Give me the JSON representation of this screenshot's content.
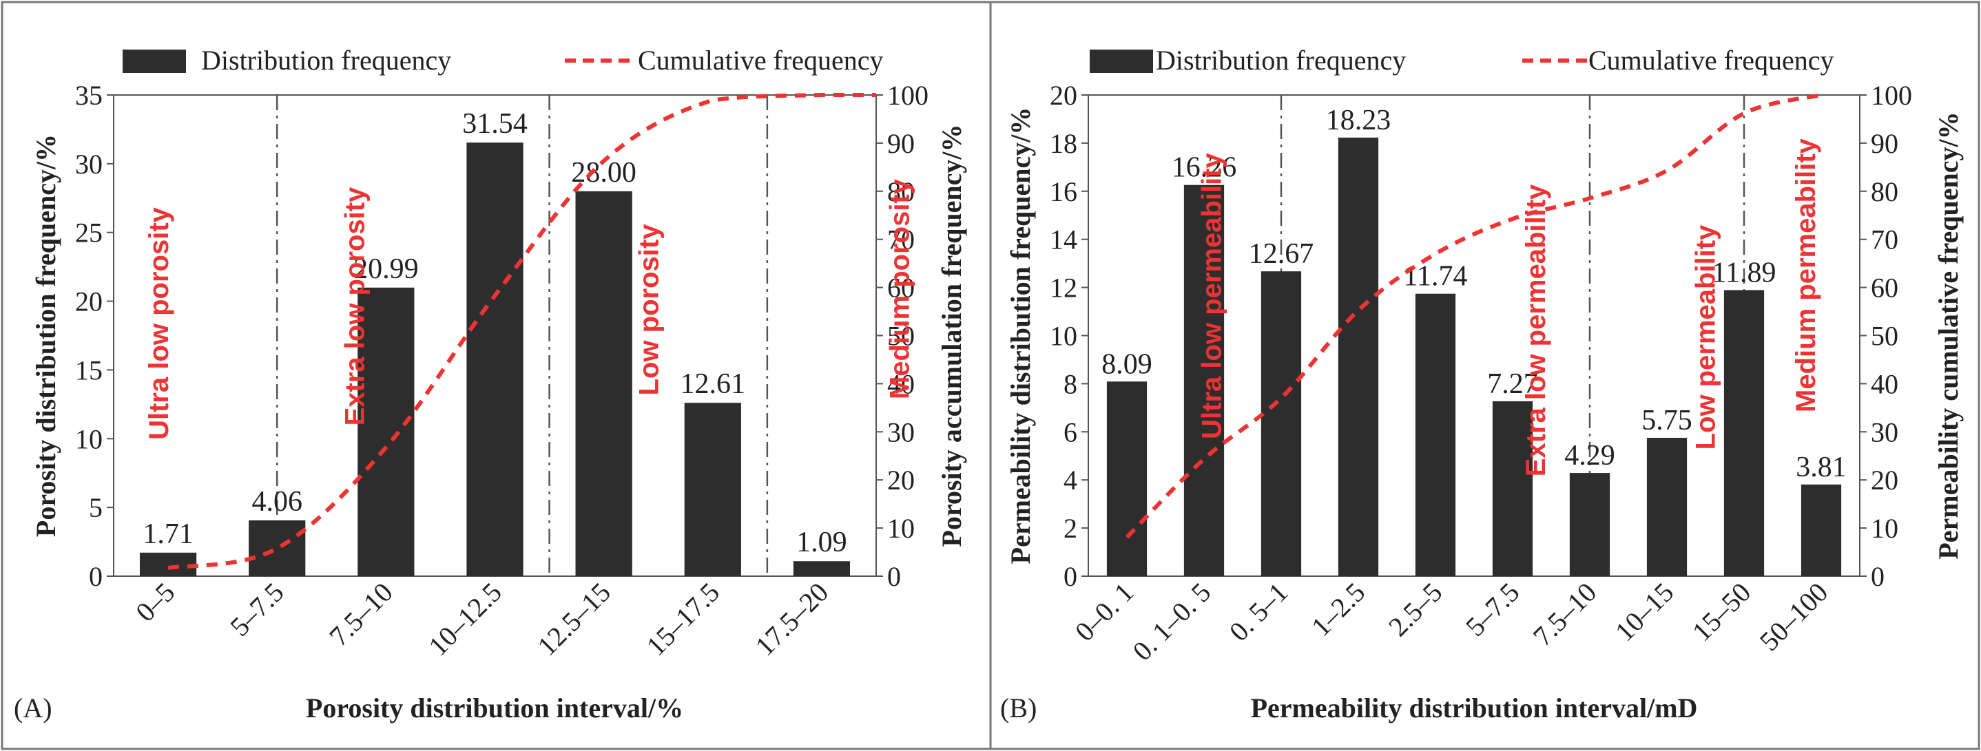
{
  "chart_data": [
    {
      "type": "bar",
      "panel_label": "(A)",
      "categories": [
        "0–5",
        "5–7.5",
        "7.5–10",
        "10–12.5",
        "12.5–15",
        "15–17.5",
        "17.5–20"
      ],
      "series": [
        {
          "name": "Distribution frequency",
          "axis": "left",
          "values": [
            1.71,
            4.06,
            20.99,
            31.54,
            28.0,
            12.61,
            1.09
          ],
          "labels": [
            "1.71",
            "4.06",
            "20.99",
            "31.54",
            "28.00",
            "12.61",
            "1.09"
          ]
        },
        {
          "name": "Cumulative frequency",
          "axis": "right",
          "style": "dashed-line",
          "values": [
            1.71,
            5.77,
            26.76,
            58.3,
            86.3,
            98.91,
            100
          ]
        }
      ],
      "xlabel": "Porosity distribution interval/%",
      "ylabel": "Porosity distribution frequency/%",
      "ylabel_right": "Porosity accumulation frequency/%",
      "ylim": [
        0,
        35
      ],
      "yticks": [
        0,
        5,
        10,
        15,
        20,
        25,
        30,
        35
      ],
      "ylim_right": [
        0,
        100
      ],
      "yticks_right": [
        0,
        10,
        20,
        30,
        40,
        50,
        60,
        70,
        80,
        90,
        100
      ],
      "region_dividers": [
        1.5,
        4.0,
        6.0
      ],
      "regions": [
        {
          "label": "Ultra low porosity",
          "at": 0.5
        },
        {
          "label": "Extra low porosity",
          "at": 2.3
        },
        {
          "label": "Low porosity",
          "at": 5.0
        },
        {
          "label": "Medium porosity",
          "at": 7.3
        }
      ],
      "legend": [
        "Distribution frequency",
        "Cumulative frequency"
      ],
      "legend_position": "top"
    },
    {
      "type": "bar",
      "panel_label": "(B)",
      "categories": [
        "0–0. 1",
        "0. 1–0. 5",
        "0. 5–1",
        "1–2.5",
        "2.5–5",
        "5–7.5",
        "7.5–10",
        "10–15",
        "15–50",
        "50–100"
      ],
      "series": [
        {
          "name": "Distribution frequency",
          "axis": "left",
          "values": [
            8.09,
            16.26,
            12.67,
            18.23,
            11.74,
            7.27,
            4.29,
            5.75,
            11.89,
            3.81
          ],
          "labels": [
            "8.09",
            "16.26",
            "12.67",
            "18.23",
            "11.74",
            "7.27",
            "4.29",
            "5.75",
            "11.89",
            "3.81"
          ]
        },
        {
          "name": "Cumulative frequency",
          "axis": "right",
          "style": "dashed-line",
          "values": [
            8.09,
            24.35,
            37.02,
            55.25,
            66.99,
            74.26,
            78.55,
            84.3,
            96.19,
            100
          ]
        }
      ],
      "xlabel": "Permeability distribution interval/mD",
      "ylabel": "Permeability distribution frequency/%",
      "ylabel_right": "Permeability cumulative frequency/%",
      "ylim": [
        0,
        20
      ],
      "yticks": [
        0,
        2,
        4,
        6,
        8,
        10,
        12,
        14,
        16,
        18,
        20
      ],
      "ylim_right": [
        0,
        100
      ],
      "yticks_right": [
        0,
        10,
        20,
        30,
        40,
        50,
        60,
        70,
        80,
        90,
        100
      ],
      "region_dividers": [
        2.5,
        6.5,
        8.5
      ],
      "regions": [
        {
          "label": "Ultra low permeability",
          "at": 1.72
        },
        {
          "label": "Extra low permeability",
          "at": 5.92
        },
        {
          "label": "Low permeability",
          "at": 8.12
        },
        {
          "label": "Medium permeability",
          "at": 9.42
        }
      ],
      "legend": [
        "Distribution frequency",
        "Cumulative frequency"
      ],
      "legend_position": "top"
    }
  ],
  "colors": {
    "bar": "#2d2d2d",
    "cumulative": "#ee3333",
    "region_text": "#ee3333",
    "divider": "#555555",
    "frame": "#777777"
  }
}
